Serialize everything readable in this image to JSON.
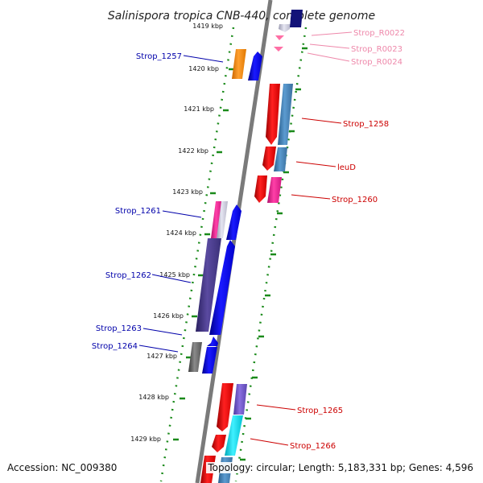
{
  "title": "Salinispora tropica CNB-440, complete genome",
  "footer": {
    "accession": "Accession: NC_009380",
    "topology": "Topology: circular; Length: 5,183,331 bp; Genes: 4,596"
  },
  "colors": {
    "backbone": "#7a7a7a",
    "track_dots": "#1a8a1a",
    "forward_label": "#0000aa",
    "reverse_label": "#cc0000",
    "rna_label": "#ee88aa"
  },
  "kbp_labels": [
    "1419 kbp",
    "1420 kbp",
    "1421 kbp",
    "1422 kbp",
    "1423 kbp",
    "1424 kbp",
    "1425 kbp",
    "1426 kbp",
    "1427 kbp",
    "1428 kbp",
    "1429 kbp"
  ],
  "gene_labels": [
    {
      "id": "strop-r0022",
      "text": "Strop_R0022",
      "kind": "rna"
    },
    {
      "id": "strop-r0023",
      "text": "Strop_R0023",
      "kind": "rna"
    },
    {
      "id": "strop-r0024",
      "text": "Strop_R0024",
      "kind": "rna"
    },
    {
      "id": "strop-1257",
      "text": "Strop_1257",
      "kind": "forward"
    },
    {
      "id": "strop-1258",
      "text": "Strop_1258",
      "kind": "reverse"
    },
    {
      "id": "leud",
      "text": "leuD",
      "kind": "reverse"
    },
    {
      "id": "strop-1260",
      "text": "Strop_1260",
      "kind": "reverse"
    },
    {
      "id": "strop-1261",
      "text": "Strop_1261",
      "kind": "forward"
    },
    {
      "id": "strop-1262",
      "text": "Strop_1262",
      "kind": "forward"
    },
    {
      "id": "strop-1263",
      "text": "Strop_1263",
      "kind": "forward"
    },
    {
      "id": "strop-1264",
      "text": "Strop_1264",
      "kind": "forward"
    },
    {
      "id": "strop-1265",
      "text": "Strop_1265",
      "kind": "reverse"
    },
    {
      "id": "strop-1266",
      "text": "Strop_1266",
      "kind": "reverse"
    }
  ]
}
